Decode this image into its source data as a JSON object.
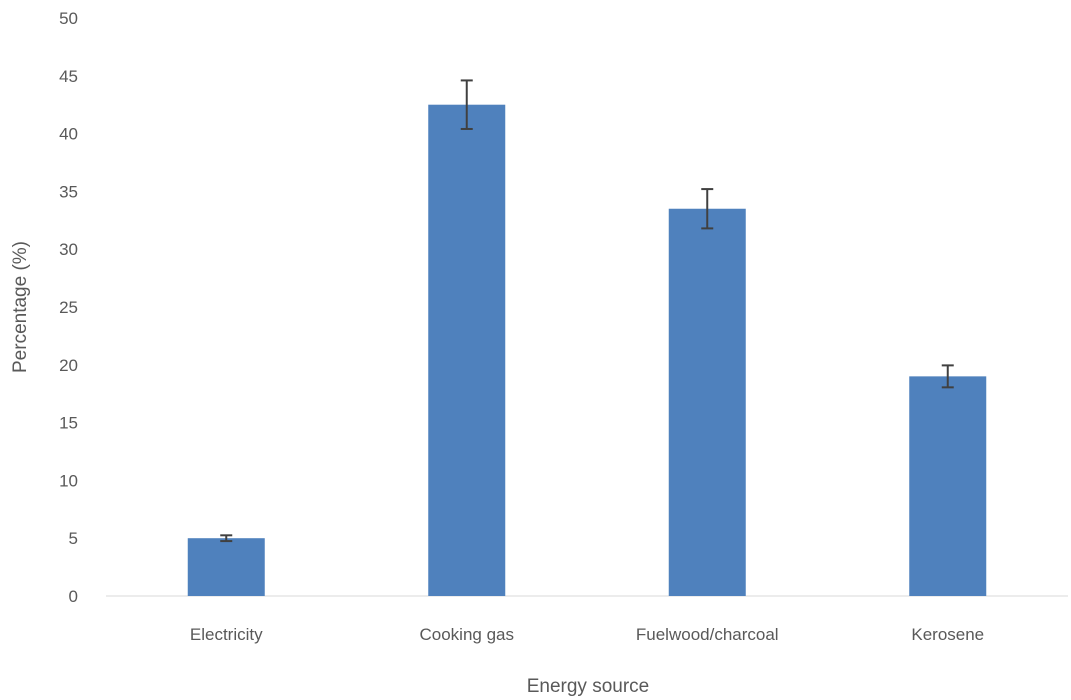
{
  "chart_data": {
    "type": "bar",
    "title": "",
    "xlabel": "Energy source",
    "ylabel": "Percentage (%)",
    "categories": [
      "Electricity",
      "Cooking gas",
      "Fuelwood/charcoal",
      "Kerosene"
    ],
    "values": [
      5.0,
      42.5,
      33.5,
      19.0
    ],
    "error": [
      0.25,
      2.1,
      1.7,
      0.95
    ],
    "ylim": [
      0,
      50
    ],
    "yticks": [
      "0",
      "5",
      "10",
      "15",
      "20",
      "25",
      "30",
      "35",
      "40",
      "45",
      "50"
    ],
    "grid": false,
    "legend": "none",
    "colors": {
      "bar": "#4f81bd",
      "error_bar": "#404040",
      "axis": "#d9d9d9",
      "text": "#595959"
    }
  }
}
